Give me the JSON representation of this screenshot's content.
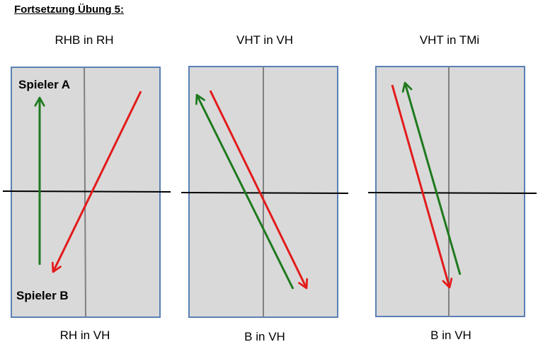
{
  "heading": "Fortsetzung Übung 5:",
  "panels": [
    {
      "top_label": "RHB in RH",
      "bottom_label": "RH in VH"
    },
    {
      "top_label": "VHT in VH",
      "bottom_label": "B in VH"
    },
    {
      "top_label": "VHT in TMi",
      "bottom_label": "B in VH"
    }
  ],
  "players": {
    "a": "Spieler A",
    "b": "Spieler B"
  },
  "colors": {
    "court_fill": "#d9d9d9",
    "court_border": "#5a80b6",
    "net": "#000000",
    "center_line": "#808080",
    "arrow_green": "#1e7a1e",
    "arrow_red": "#e31b1b"
  }
}
